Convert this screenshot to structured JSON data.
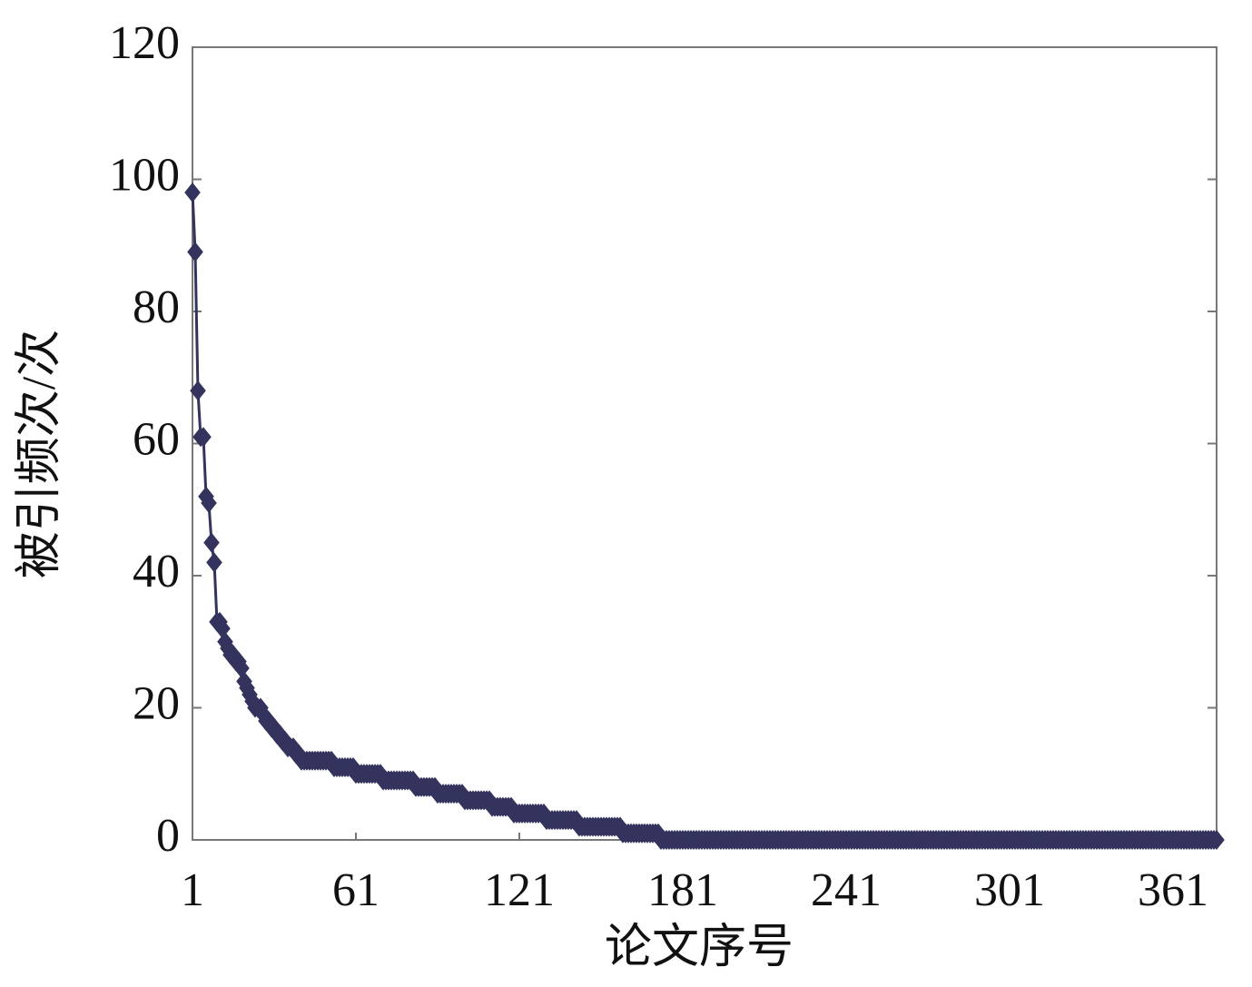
{
  "chart_data": {
    "type": "line",
    "ylabel": "被引频次/次",
    "xlabel": "论文序号",
    "color": "#33335e",
    "marker": "diamond",
    "xlim": [
      1,
      377
    ],
    "xticks": [
      1,
      61,
      121,
      181,
      241,
      301,
      361
    ],
    "ylim": [
      0,
      120
    ],
    "yticks": [
      0,
      20,
      40,
      60,
      80,
      100,
      120
    ],
    "grid": false,
    "x": [
      1,
      2,
      3,
      4,
      5,
      6,
      7,
      8,
      9,
      10,
      11,
      12,
      13,
      14,
      15,
      16,
      17,
      18,
      19,
      20,
      21,
      22,
      23,
      24,
      25,
      26,
      27,
      28,
      29,
      30,
      31,
      32,
      33,
      34,
      35,
      36,
      37,
      38,
      39,
      40,
      41,
      42,
      43,
      44,
      45,
      46,
      47,
      48,
      49,
      50,
      51,
      52,
      53,
      54,
      55,
      56,
      57,
      58,
      59,
      60,
      61,
      62,
      63,
      64,
      65,
      66,
      67,
      68,
      69,
      70,
      71,
      72,
      73,
      74,
      75,
      76,
      77,
      78,
      79,
      80,
      81,
      82,
      83,
      84,
      85,
      86,
      87,
      88,
      89,
      90,
      91,
      92,
      93,
      94,
      95,
      96,
      97,
      98,
      99,
      100,
      101,
      102,
      103,
      104,
      105,
      106,
      107,
      108,
      109,
      110,
      111,
      112,
      113,
      114,
      115,
      116,
      117,
      118,
      119,
      120,
      121,
      122,
      123,
      124,
      125,
      126,
      127,
      128,
      129,
      130,
      131,
      132,
      133,
      134,
      135,
      136,
      137,
      138,
      139,
      140,
      141,
      142,
      143,
      144,
      145,
      146,
      147,
      148,
      149,
      150,
      151,
      152,
      153,
      154,
      155,
      156,
      157,
      158,
      159,
      160,
      161,
      162,
      163,
      164,
      165,
      166,
      167,
      168,
      169,
      170,
      171,
      172,
      173,
      174,
      175,
      176,
      177,
      178,
      179,
      180,
      181,
      182,
      183,
      184,
      185,
      186,
      187,
      188,
      189,
      190,
      191,
      192,
      193,
      194,
      195,
      196,
      197,
      198,
      199,
      200,
      201,
      202,
      203,
      204,
      205,
      206,
      207,
      208,
      209,
      210,
      211,
      212,
      213,
      214,
      215,
      216,
      217,
      218,
      219,
      220,
      221,
      222,
      223,
      224,
      225,
      226,
      227,
      228,
      229,
      230,
      231,
      232,
      233,
      234,
      235,
      236,
      237,
      238,
      239,
      240,
      241,
      242,
      243,
      244,
      245,
      246,
      247,
      248,
      249,
      250,
      251,
      252,
      253,
      254,
      255,
      256,
      257,
      258,
      259,
      260,
      261,
      262,
      263,
      264,
      265,
      266,
      267,
      268,
      269,
      270,
      271,
      272,
      273,
      274,
      275,
      276,
      277,
      278,
      279,
      280,
      281,
      282,
      283,
      284,
      285,
      286,
      287,
      288,
      289,
      290,
      291,
      292,
      293,
      294,
      295,
      296,
      297,
      298,
      299,
      300,
      301,
      302,
      303,
      304,
      305,
      306,
      307,
      308,
      309,
      310,
      311,
      312,
      313,
      314,
      315,
      316,
      317,
      318,
      319,
      320,
      321,
      322,
      323,
      324,
      325,
      326,
      327,
      328,
      329,
      330,
      331,
      332,
      333,
      334,
      335,
      336,
      337,
      338,
      339,
      340,
      341,
      342,
      343,
      344,
      345,
      346,
      347,
      348,
      349,
      350,
      351,
      352,
      353,
      354,
      355,
      356,
      357,
      358,
      359,
      360,
      361,
      362,
      363,
      364,
      365,
      366,
      367,
      368,
      369,
      370,
      371,
      372,
      373,
      374,
      375,
      376,
      377
    ],
    "values": [
      98,
      89,
      68,
      61,
      61,
      52,
      51,
      45,
      42,
      33,
      33,
      32,
      30,
      29,
      28,
      28,
      27,
      27,
      26,
      24,
      23,
      22,
      21,
      20,
      20,
      20,
      19,
      18,
      18,
      17,
      17,
      16,
      16,
      15,
      15,
      14,
      14,
      14,
      13,
      13,
      12,
      12,
      12,
      12,
      12,
      12,
      12,
      12,
      12,
      12,
      12,
      12,
      11,
      11,
      11,
      11,
      11,
      11,
      11,
      11,
      10,
      10,
      10,
      10,
      10,
      10,
      10,
      10,
      10,
      10,
      9,
      9,
      9,
      9,
      9,
      9,
      9,
      9,
      9,
      9,
      9,
      9,
      8,
      8,
      8,
      8,
      8,
      8,
      8,
      8,
      7,
      7,
      7,
      7,
      7,
      7,
      7,
      7,
      7,
      7,
      6,
      6,
      6,
      6,
      6,
      6,
      6,
      6,
      6,
      6,
      5,
      5,
      5,
      5,
      5,
      5,
      5,
      5,
      4,
      4,
      4,
      4,
      4,
      4,
      4,
      4,
      4,
      4,
      4,
      4,
      3,
      3,
      3,
      3,
      3,
      3,
      3,
      3,
      3,
      3,
      3,
      3,
      2,
      2,
      2,
      2,
      2,
      2,
      2,
      2,
      2,
      2,
      2,
      2,
      2,
      2,
      2,
      2,
      1,
      1,
      1,
      1,
      1,
      1,
      1,
      1,
      1,
      1,
      1,
      1,
      1,
      1,
      0,
      0,
      0,
      0,
      0,
      0,
      0,
      0,
      0,
      0,
      0,
      0,
      0,
      0,
      0,
      0,
      0,
      0,
      0,
      0,
      0,
      0,
      0,
      0,
      0,
      0,
      0,
      0,
      0,
      0,
      0,
      0,
      0,
      0,
      0,
      0,
      0,
      0,
      0,
      0,
      0,
      0,
      0,
      0,
      0,
      0,
      0,
      0,
      0,
      0,
      0,
      0,
      0,
      0,
      0,
      0,
      0,
      0,
      0,
      0,
      0,
      0,
      0,
      0,
      0,
      0,
      0,
      0,
      0,
      0,
      0,
      0,
      0,
      0,
      0,
      0,
      0,
      0,
      0,
      0,
      0,
      0,
      0,
      0,
      0,
      0,
      0,
      0,
      0,
      0,
      0,
      0,
      0,
      0,
      0,
      0,
      0,
      0,
      0,
      0,
      0,
      0,
      0,
      0,
      0,
      0,
      0,
      0,
      0,
      0,
      0,
      0,
      0,
      0,
      0,
      0,
      0,
      0,
      0,
      0,
      0,
      0,
      0,
      0,
      0,
      0,
      0,
      0,
      0,
      0,
      0,
      0,
      0,
      0,
      0,
      0,
      0,
      0,
      0,
      0,
      0,
      0,
      0,
      0,
      0,
      0,
      0,
      0,
      0,
      0,
      0,
      0,
      0,
      0,
      0,
      0,
      0,
      0,
      0,
      0,
      0,
      0,
      0,
      0,
      0,
      0,
      0,
      0,
      0,
      0,
      0,
      0,
      0,
      0,
      0,
      0,
      0,
      0,
      0,
      0,
      0,
      0,
      0,
      0,
      0,
      0,
      0,
      0,
      0,
      0,
      0,
      0,
      0,
      0,
      0,
      0,
      0,
      0,
      0,
      0,
      0,
      0,
      0,
      0,
      0
    ]
  }
}
